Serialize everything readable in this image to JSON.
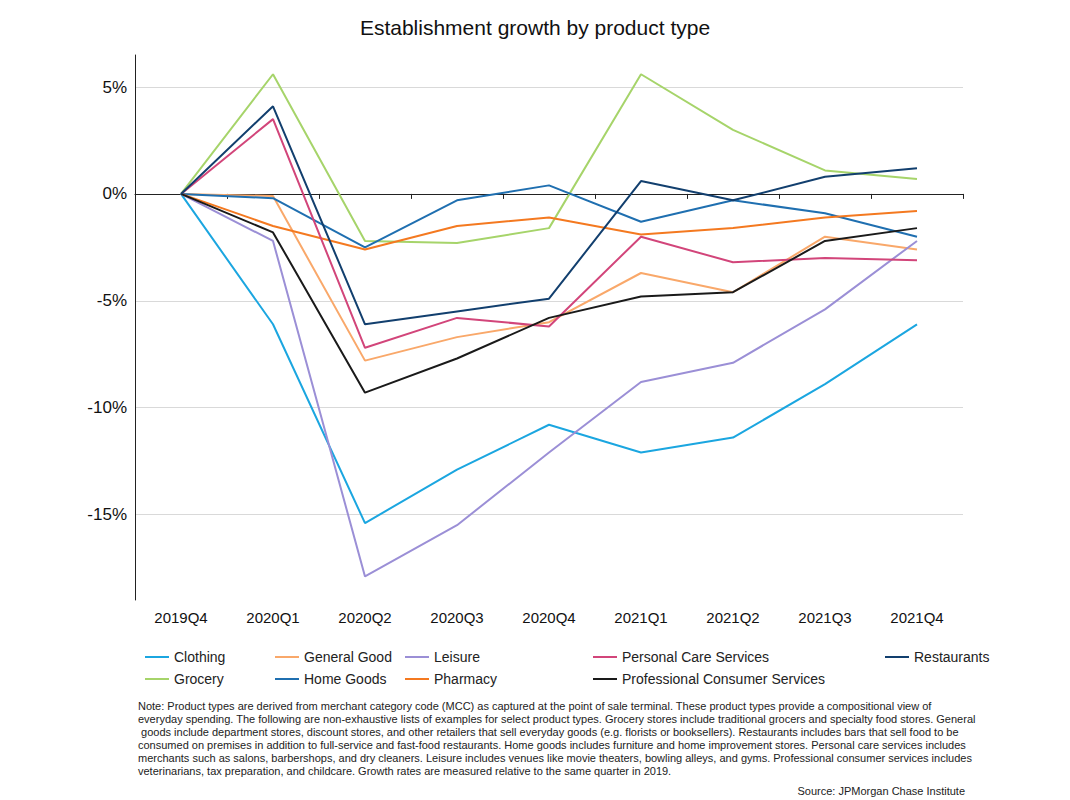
{
  "chart_data": {
    "type": "line",
    "title": "Establishment growth by product type",
    "note": "Note: Product types are derived from merchant category code (MCC) as captured at the point of sale terminal. These product types provide a compositional view of everyday spending. The following are non-exhaustive lists of examples for select product types. Grocery stores include traditional grocers and specialty food stores. General goods include department stores, discount stores, and other retailers that sell everyday goods (e.g. florists or booksellers). Restaurants includes bars that sell food to be consumed on premises in addition to full-service and fast-food restaurants. Home goods includes furniture and home improvement stores. Personal care services includes merchants such as salons, barbershops, and dry cleaners. Leisure includes venues like movie theaters, bowling alleys, and gyms. Professional consumer services includes veterinarians, tax preparation, and childcare. Growth rates are measured relative to the same quarter in 2019.",
    "source": "Source: JPMorgan Chase Institute",
    "categories": [
      "2019Q4",
      "2020Q1",
      "2020Q2",
      "2020Q3",
      "2020Q4",
      "2021Q1",
      "2021Q2",
      "2021Q3",
      "2021Q4"
    ],
    "series": [
      {
        "name": "Clothing",
        "color": "#1ba6e0",
        "values": [
          0,
          -6.1,
          -15.4,
          -12.9,
          -10.8,
          -12.1,
          -11.4,
          -8.9,
          -6.1
        ]
      },
      {
        "name": "Grocery",
        "color": "#a6d46a",
        "values": [
          0,
          5.6,
          -2.2,
          -2.3,
          -1.6,
          5.6,
          3.0,
          1.1,
          0.7
        ]
      },
      {
        "name": "General Good",
        "color": "#f9a86a",
        "values": [
          0,
          -0.1,
          -7.8,
          -6.7,
          -6.0,
          -3.7,
          -4.6,
          -2.0,
          -2.6
        ]
      },
      {
        "name": "Home Goods",
        "color": "#1f6fb0",
        "values": [
          0,
          -0.2,
          -2.5,
          -0.3,
          0.4,
          -1.3,
          -0.3,
          -0.9,
          -2.0
        ]
      },
      {
        "name": "Leisure",
        "color": "#9b8fd6",
        "values": [
          0,
          -2.2,
          -17.9,
          -15.5,
          -12.1,
          -8.8,
          -7.9,
          -5.4,
          -2.2
        ]
      },
      {
        "name": "Pharmacy",
        "color": "#f47920",
        "values": [
          0,
          -1.5,
          -2.6,
          -1.5,
          -1.1,
          -1.9,
          -1.6,
          -1.1,
          -0.8
        ]
      },
      {
        "name": "Personal Care Services",
        "color": "#d2457a",
        "values": [
          0,
          3.5,
          -7.2,
          -5.8,
          -6.2,
          -2.0,
          -3.2,
          -3.0,
          -3.1
        ]
      },
      {
        "name": "Professional Consumer Services",
        "color": "#1a1a1a",
        "values": [
          0,
          -1.8,
          -9.3,
          -7.7,
          -5.8,
          -4.8,
          -4.6,
          -2.2,
          -1.6
        ]
      },
      {
        "name": "Restaurants",
        "color": "#123f6e",
        "values": [
          0,
          4.1,
          -6.1,
          -5.5,
          -4.9,
          0.6,
          -0.3,
          0.8,
          1.2
        ]
      }
    ],
    "ylim": [
      -19,
      6.5
    ],
    "yticks": [
      {
        "value": -15,
        "label": "-15%"
      },
      {
        "value": -10,
        "label": "-10%"
      },
      {
        "value": -5,
        "label": "-5%"
      },
      {
        "value": 0,
        "label": "0%"
      },
      {
        "value": 5,
        "label": "5%"
      }
    ],
    "grid": true,
    "legend": "bottom"
  }
}
